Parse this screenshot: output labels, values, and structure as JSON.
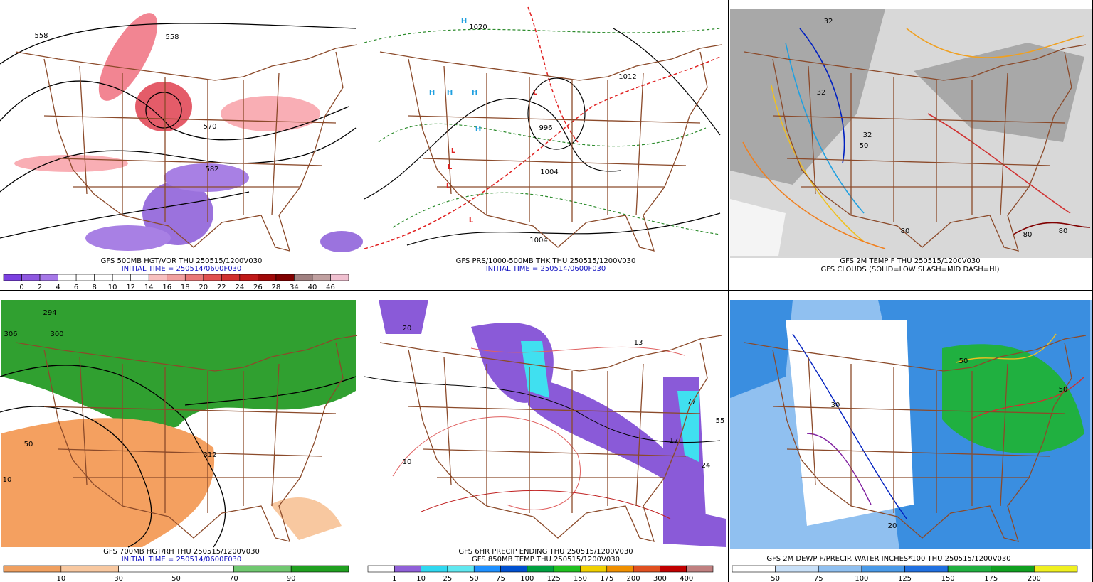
{
  "panels": [
    {
      "caption": [
        "GFS 500MB HGT/VOR THU 250515/1200V030",
        "INITIAL TIME = 250514/0600F030"
      ],
      "colorbar": {
        "labels": [
          "0",
          "2",
          "4",
          "6",
          "8",
          "10",
          "12",
          "14",
          "16",
          "18",
          "20",
          "22",
          "24",
          "26",
          "28",
          "34",
          "40",
          "46"
        ],
        "colors": [
          "#7b40e0",
          "#8e58e0",
          "#a678e8",
          "#ffffff",
          "#ffffff",
          "#ffffff",
          "#ffffff",
          "#ffffff",
          "#f8c0c0",
          "#f0a0a0",
          "#e87878",
          "#e05050",
          "#d03030",
          "#c01818",
          "#a00808",
          "#800000",
          "#a08080",
          "#c0a0a0",
          "#f0c0d0"
        ]
      },
      "map_labels": [
        "558",
        "558",
        "570",
        "582"
      ]
    },
    {
      "caption": [
        "GFS PRS/1000-500MB THK THU 250515/1200V030",
        "INITIAL TIME = 250514/0600F030"
      ],
      "map_labels": [
        "H",
        "H",
        "H",
        "H",
        "H",
        "L",
        "L",
        "L",
        "L",
        "L",
        "1020",
        "1012",
        "1004",
        "996",
        "1004"
      ]
    },
    {
      "caption": [
        "GFS 2M TEMP F THU 250515/1200V030",
        "GFS CLOUDS (SOLID=LOW SLASH=MID DASH=HI)"
      ],
      "map_labels": [
        "32",
        "32",
        "32",
        "50",
        "80",
        "80",
        "80"
      ]
    },
    {
      "caption": [
        "GFS 700MB HGT/RH THU 250515/1200V030",
        "INITIAL TIME = 250514/0600F030"
      ],
      "colorbar": {
        "labels": [
          "10",
          "30",
          "50",
          "70",
          "90"
        ],
        "colors": [
          "#f0a060",
          "#f8c8a0",
          "#ffffff",
          "#ffffff",
          "#70c870",
          "#20a020"
        ]
      },
      "map_labels": [
        "294",
        "300",
        "306",
        "312",
        "50",
        "10"
      ]
    },
    {
      "caption": [
        "GFS 6HR PRECIP ENDING THU 250515/1200V030",
        "GFS 850MB TEMP THU 250515/1200V030"
      ],
      "colorbar": {
        "labels": [
          "1",
          "10",
          "25",
          "50",
          "75",
          "100",
          "125",
          "150",
          "175",
          "200",
          "300",
          "400"
        ],
        "colors": [
          "#ffffff",
          "#9060d8",
          "#30d8f0",
          "#60e8f0",
          "#1e90ff",
          "#0050d0",
          "#00a040",
          "#20c020",
          "#f0d000",
          "#f09000",
          "#e05020",
          "#c00000",
          "#c08080"
        ]
      },
      "map_labels": [
        "20",
        "13",
        "17",
        "24",
        "55",
        "77",
        "10"
      ]
    },
    {
      "caption": [
        "GFS 2M DEWP F/PRECIP. WATER INCHES*100 THU 250515/1200V030"
      ],
      "colorbar": {
        "labels": [
          "50",
          "75",
          "100",
          "125",
          "150",
          "175",
          "200"
        ],
        "colors": [
          "#ffffff",
          "#c8e0f8",
          "#90c0f0",
          "#4a9ae8",
          "#2070e0",
          "#20b040",
          "#10a020",
          "#f0f020"
        ]
      },
      "map_labels": [
        "50",
        "50",
        "30",
        "20"
      ]
    }
  ]
}
